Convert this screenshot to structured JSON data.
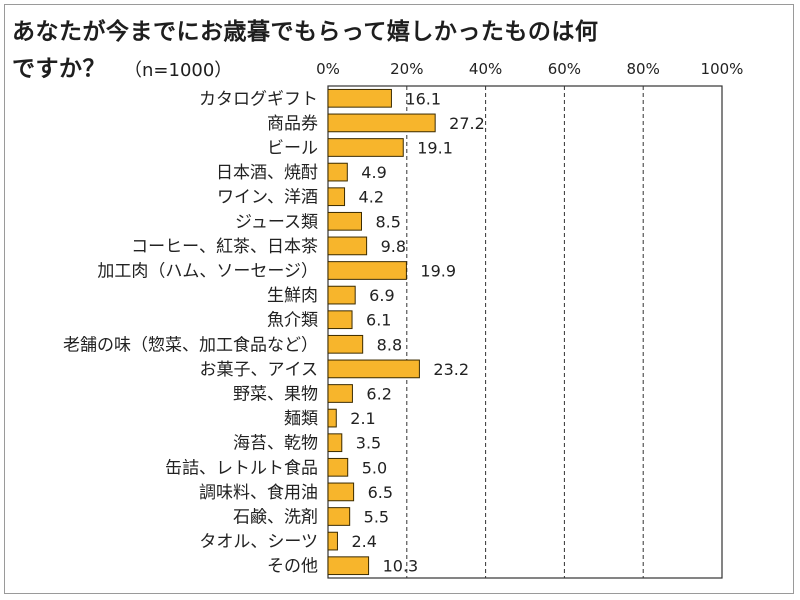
{
  "chart_data": {
    "type": "bar",
    "orientation": "horizontal",
    "title_line1": "あなたが今までにお歳暮でもらって嬉しかったものは何",
    "title_line2": "ですか？",
    "note": "（n=1000）",
    "x_ticks": [
      "0%",
      "20%",
      "40%",
      "60%",
      "80%",
      "100%"
    ],
    "xlim": [
      0,
      100
    ],
    "grid": "vertical dashed",
    "bar_color": "#f7b52c",
    "categories": [
      "カタログギフト",
      "商品券",
      "ビール",
      "日本酒、焼酎",
      "ワイン、洋酒",
      "ジュース類",
      "コーヒー、紅茶、日本茶",
      "加工肉（ハム、ソーセージ）",
      "生鮮肉",
      "魚介類",
      "老舗の味（惣菜、加工食品など）",
      "お菓子、アイス",
      "野菜、果物",
      "麺類",
      "海苔、乾物",
      "缶詰、レトルト食品",
      "調味料、食用油",
      "石鹸、洗剤",
      "タオル、シーツ",
      "その他"
    ],
    "values": [
      16.1,
      27.2,
      19.1,
      4.9,
      4.2,
      8.5,
      9.8,
      19.9,
      6.9,
      6.1,
      8.8,
      23.2,
      6.2,
      2.1,
      3.5,
      5.0,
      6.5,
      5.5,
      2.4,
      10.3
    ],
    "value_labels": [
      "16.1",
      "27.2",
      "19.1",
      "4.9",
      "4.2",
      "8.5",
      "9.8",
      "19.9",
      "6.9",
      "6.1",
      "8.8",
      "23.2",
      "6.2",
      "2.1",
      "3.5",
      "5.0",
      "6.5",
      "5.5",
      "2.4",
      "10.3"
    ]
  }
}
